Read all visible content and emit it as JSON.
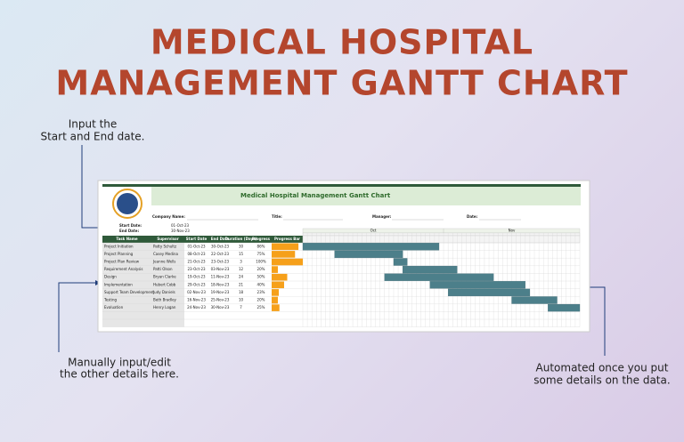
{
  "header": {
    "title_lines": [
      "MEDICAL HOSPITAL",
      "MANAGEMENT GANTT CHART"
    ]
  },
  "callouts": {
    "start_end": [
      "Input the",
      "Start and End date."
    ],
    "manual": [
      "Manually input/edit",
      "the other details here."
    ],
    "automated": [
      "Automated once you put",
      "some details on the data."
    ]
  },
  "sheet": {
    "title": "Medical Hospital Management Gantt Chart",
    "fields": {
      "company": "Company Name:",
      "title": "Title:",
      "manager": "Manager:",
      "date": "Date:"
    },
    "start_label": "Start Date:",
    "start_date": "01-Oct-23",
    "end_label": "End Date:",
    "end_date": "30-Nov-23",
    "columns": [
      "Task Name",
      "Supervisor",
      "Start Date",
      "End Date",
      "Duration (Days)",
      "Progress",
      "Progress Bar"
    ],
    "months": [
      "Oct",
      "Nov"
    ],
    "rows": [
      {
        "task": "Project Initiation",
        "supervisor": "Patty Schultz",
        "start": "01-Oct-23",
        "end": "30-Oct-23",
        "duration": 30,
        "progress": 86,
        "progress_label": "86%"
      },
      {
        "task": "Project Planning",
        "supervisor": "Casey Medina",
        "start": "08-Oct-23",
        "end": "22-Oct-23",
        "duration": 15,
        "progress": 75,
        "progress_label": "75%"
      },
      {
        "task": "Project Plan Review",
        "supervisor": "Jeanne Wells",
        "start": "21-Oct-23",
        "end": "23-Oct-23",
        "duration": 3,
        "progress": 100,
        "progress_label": "100%"
      },
      {
        "task": "Requirement Analysis",
        "supervisor": "Patti Olson",
        "start": "23-Oct-23",
        "end": "03-Nov-23",
        "duration": 12,
        "progress": 20,
        "progress_label": "20%"
      },
      {
        "task": "Design",
        "supervisor": "Bryan Clarke",
        "start": "19-Oct-23",
        "end": "11-Nov-23",
        "duration": 24,
        "progress": 50,
        "progress_label": "50%"
      },
      {
        "task": "Implementation",
        "supervisor": "Hubert Cobb",
        "start": "29-Oct-23",
        "end": "18-Nov-23",
        "duration": 21,
        "progress": 40,
        "progress_label": "40%"
      },
      {
        "task": "Support Team Development",
        "supervisor": "Judy Daniels",
        "start": "02-Nov-23",
        "end": "19-Nov-23",
        "duration": 18,
        "progress": 23,
        "progress_label": "23%"
      },
      {
        "task": "Testing",
        "supervisor": "Beth Bradley",
        "start": "16-Nov-23",
        "end": "25-Nov-23",
        "duration": 10,
        "progress": 20,
        "progress_label": "20%"
      },
      {
        "task": "Evaluation",
        "supervisor": "Henry Logan",
        "start": "24-Nov-23",
        "end": "30-Nov-23",
        "duration": 7,
        "progress": 25,
        "progress_label": "25%"
      }
    ]
  }
}
